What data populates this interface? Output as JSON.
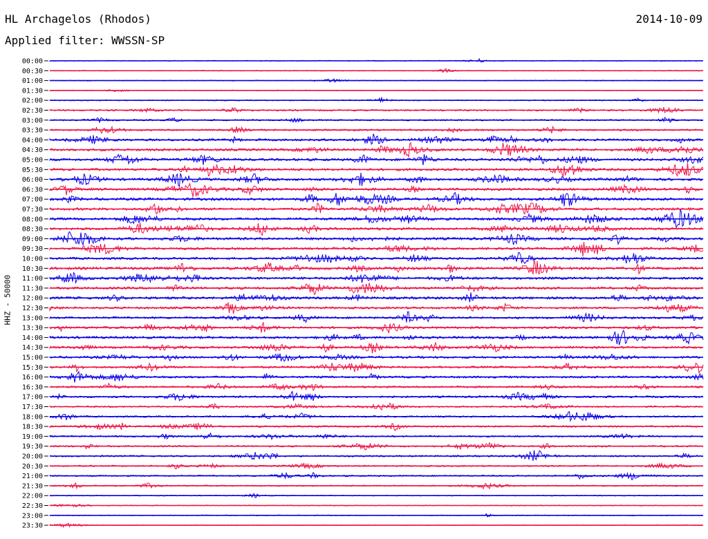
{
  "header": {
    "station": "HL Archagelos (Rhodos)",
    "date": "2014-10-09",
    "filter": "Applied filter: WWSSN-SP"
  },
  "chart_data": {
    "type": "line",
    "title": "HL Archagelos (Rhodos)",
    "subtitle": "Applied filter: WWSSN-SP",
    "ylabel": "HHZ - 50000",
    "xlabel": "",
    "rows": [
      "00:00",
      "00:30",
      "01:00",
      "01:30",
      "02:00",
      "02:30",
      "03:00",
      "03:30",
      "04:00",
      "04:30",
      "05:00",
      "05:30",
      "06:00",
      "06:30",
      "07:00",
      "07:30",
      "08:00",
      "08:30",
      "09:00",
      "09:30",
      "10:00",
      "10:30",
      "11:00",
      "11:30",
      "12:00",
      "12:30",
      "13:00",
      "13:30",
      "14:00",
      "14:30",
      "15:00",
      "15:30",
      "16:00",
      "16:30",
      "17:00",
      "17:30",
      "18:00",
      "18:30",
      "19:00",
      "19:30",
      "20:00",
      "20:30",
      "21:00",
      "21:30",
      "22:00",
      "22:30",
      "23:00",
      "23:30"
    ],
    "activity": [
      0.05,
      0.03,
      0.04,
      0.04,
      0.12,
      0.3,
      0.25,
      0.35,
      0.5,
      0.55,
      0.6,
      0.55,
      0.6,
      0.6,
      0.65,
      0.6,
      0.6,
      0.6,
      0.6,
      0.55,
      0.55,
      0.65,
      0.6,
      0.55,
      0.6,
      0.5,
      0.45,
      0.55,
      0.55,
      0.5,
      0.5,
      0.45,
      0.45,
      0.4,
      0.4,
      0.3,
      0.3,
      0.35,
      0.3,
      0.3,
      0.3,
      0.25,
      0.25,
      0.2,
      0.05,
      0.05,
      0.04,
      0.03
    ],
    "colors": [
      "#0a00e6",
      "#ee1245"
    ],
    "grid": false,
    "legend": "none"
  }
}
